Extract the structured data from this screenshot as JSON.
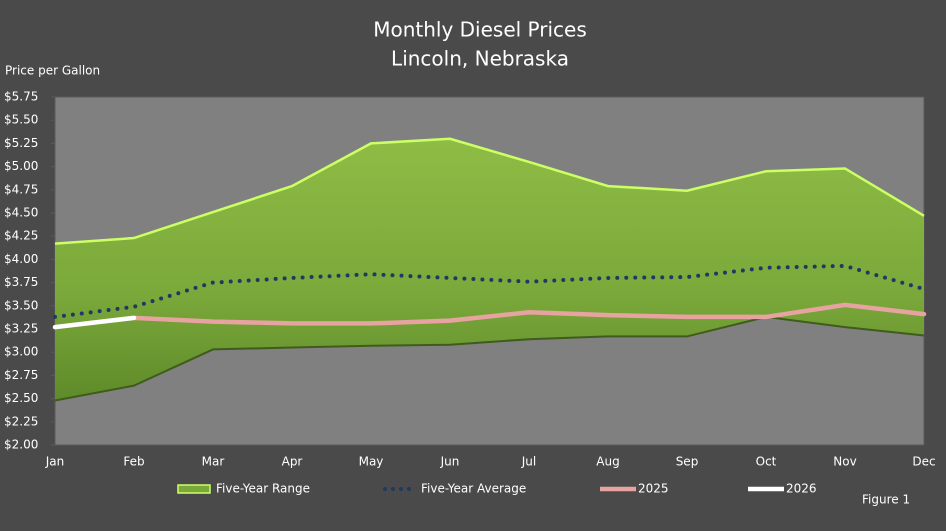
{
  "chart_data": {
    "type": "band-line",
    "title": "Monthly Diesel Prices",
    "subtitle": "Lincoln, Nebraska",
    "y_label": "Price per Gallon",
    "figure_label": "Figure 1",
    "categories": [
      "Jan",
      "Feb",
      "Mar",
      "Apr",
      "May",
      "Jun",
      "Jul",
      "Aug",
      "Sep",
      "Oct",
      "Nov",
      "Dec"
    ],
    "ylim": [
      2.0,
      5.75
    ],
    "yticks": [
      {
        "value": 2.0,
        "label": "$2.00"
      },
      {
        "value": 2.25,
        "label": "$2.25"
      },
      {
        "value": 2.5,
        "label": "$2.50"
      },
      {
        "value": 2.75,
        "label": "$2.75"
      },
      {
        "value": 3.0,
        "label": "$3.00"
      },
      {
        "value": 3.25,
        "label": "$3.25"
      },
      {
        "value": 3.5,
        "label": "$3.50"
      },
      {
        "value": 3.75,
        "label": "$3.75"
      },
      {
        "value": 4.0,
        "label": "$4.00"
      },
      {
        "value": 4.25,
        "label": "$4.25"
      },
      {
        "value": 4.5,
        "label": "$4.50"
      },
      {
        "value": 4.75,
        "label": "$4.75"
      },
      {
        "value": 5.0,
        "label": "$5.00"
      },
      {
        "value": 5.25,
        "label": "$5.25"
      },
      {
        "value": 5.5,
        "label": "$5.50"
      },
      {
        "value": 5.75,
        "label": "$5.75"
      }
    ],
    "grid": false,
    "legend": "bottom",
    "series": [
      {
        "name": "Five-Year Range",
        "kind": "band",
        "color": "#7aa83a",
        "edge_color": "#ccff66",
        "high": [
          4.17,
          4.23,
          4.51,
          4.79,
          5.25,
          5.3,
          5.05,
          4.79,
          4.74,
          4.95,
          4.98,
          4.47
        ],
        "low": [
          2.48,
          2.64,
          3.03,
          3.05,
          3.07,
          3.08,
          3.14,
          3.17,
          3.17,
          3.38,
          3.27,
          3.18
        ]
      },
      {
        "name": "Five-Year Average",
        "kind": "dotted",
        "color": "#1f3864",
        "values": [
          3.38,
          3.49,
          3.75,
          3.8,
          3.84,
          3.8,
          3.76,
          3.8,
          3.81,
          3.91,
          3.93,
          3.68
        ]
      },
      {
        "name": "2025",
        "kind": "line",
        "color": "#e6a3a0",
        "values": [
          null,
          3.37,
          3.33,
          3.31,
          3.31,
          3.34,
          3.43,
          3.4,
          3.38,
          3.38,
          3.51,
          3.41
        ]
      },
      {
        "name": "2026",
        "kind": "line",
        "color": "#ffffff",
        "values": [
          3.27,
          3.37,
          null,
          null,
          null,
          null,
          null,
          null,
          null,
          null,
          null,
          null
        ]
      }
    ]
  }
}
